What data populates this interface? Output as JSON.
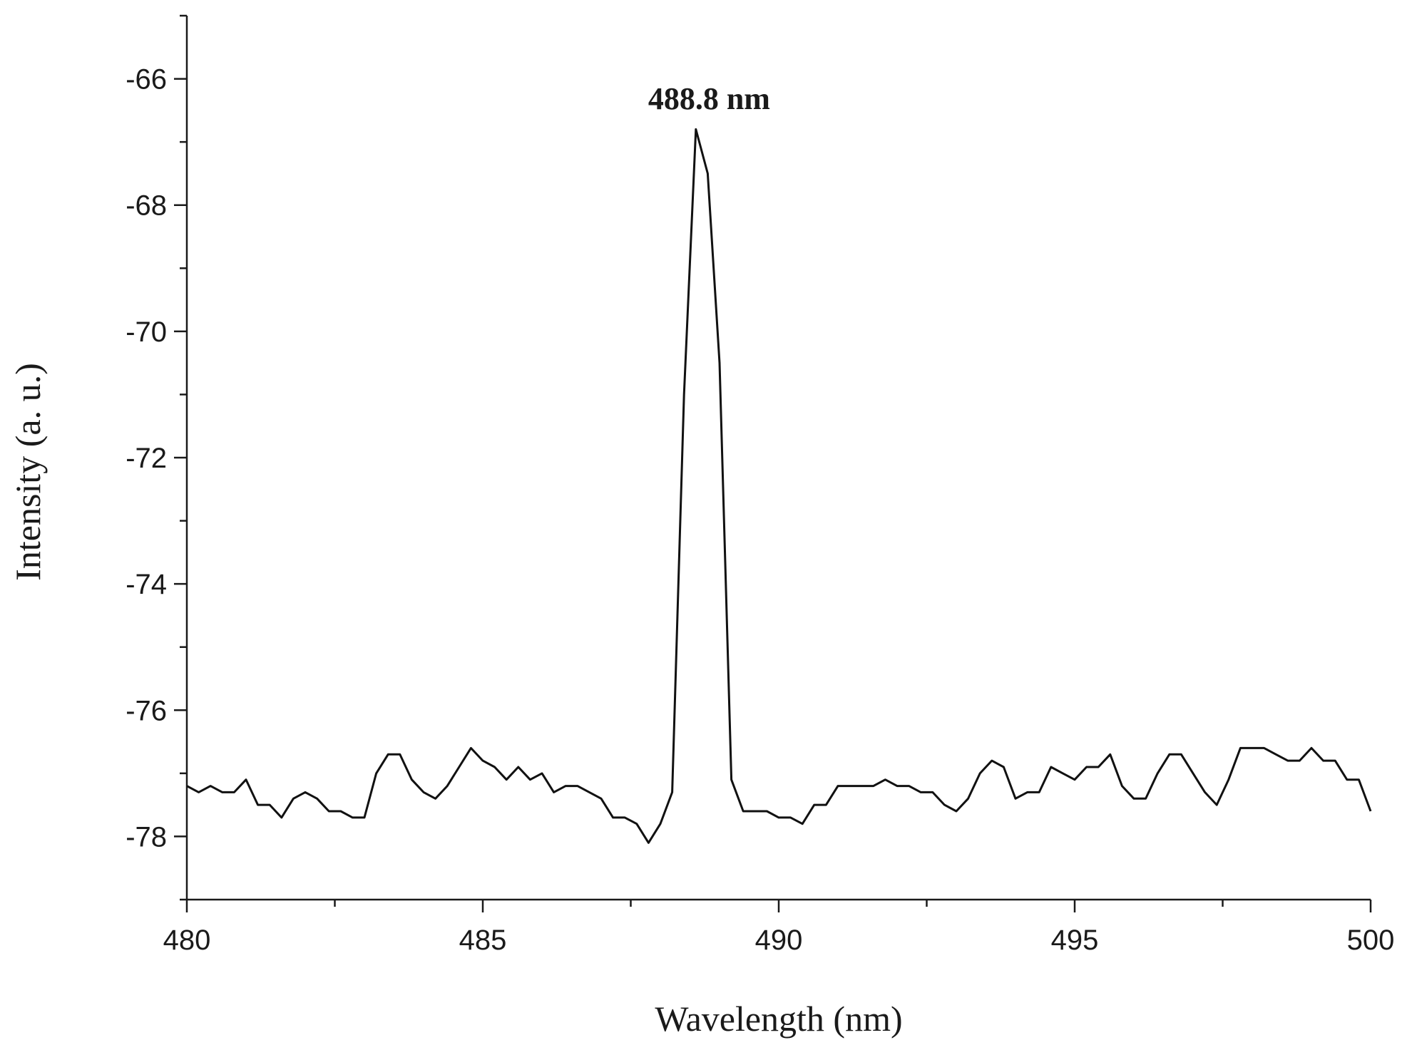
{
  "chart_data": {
    "type": "line",
    "xlabel": "Wavelength (nm)",
    "ylabel": "Intensity (a. u.)",
    "xlim": [
      480,
      500
    ],
    "ylim": [
      -79,
      -65
    ],
    "xticks": [
      480,
      485,
      490,
      495,
      500
    ],
    "xtick_labels": [
      "480",
      "485",
      "490",
      "495",
      "500"
    ],
    "yticks": [
      -66,
      -68,
      -70,
      -72,
      -74,
      -76,
      -78
    ],
    "ytick_labels": [
      "-66",
      "-68",
      "-70",
      "-72",
      "-74",
      "-76",
      "-78"
    ],
    "grid": false,
    "annotations": [
      {
        "text": "488.8 nm",
        "x": 488.8,
        "y": -66.3
      }
    ],
    "series": [
      {
        "color": "#111111",
        "x": [
          480.0,
          480.2,
          480.4,
          480.6,
          480.8,
          481.0,
          481.2,
          481.4,
          481.6,
          481.8,
          482.0,
          482.2,
          482.4,
          482.6,
          482.8,
          483.0,
          483.2,
          483.4,
          483.6,
          483.8,
          484.0,
          484.2,
          484.4,
          484.6,
          484.8,
          485.0,
          485.2,
          485.4,
          485.6,
          485.8,
          486.0,
          486.2,
          486.4,
          486.6,
          486.8,
          487.0,
          487.2,
          487.4,
          487.6,
          487.8,
          488.0,
          488.2,
          488.4,
          488.6,
          488.8,
          489.0,
          489.2,
          489.4,
          489.6,
          489.8,
          490.0,
          490.2,
          490.4,
          490.6,
          490.8,
          491.0,
          491.2,
          491.4,
          491.6,
          491.8,
          492.0,
          492.2,
          492.4,
          492.6,
          492.8,
          493.0,
          493.2,
          493.4,
          493.6,
          493.8,
          494.0,
          494.2,
          494.4,
          494.6,
          494.8,
          495.0,
          495.2,
          495.4,
          495.6,
          495.8,
          496.0,
          496.2,
          496.4,
          496.6,
          496.8,
          497.0,
          497.2,
          497.4,
          497.6,
          497.8,
          498.0,
          498.2,
          498.4,
          498.6,
          498.8,
          499.0,
          499.2,
          499.4,
          499.6,
          499.8,
          500.0
        ],
        "y": [
          -77.2,
          -77.3,
          -77.2,
          -77.3,
          -77.3,
          -77.1,
          -77.5,
          -77.5,
          -77.7,
          -77.4,
          -77.3,
          -77.4,
          -77.6,
          -77.6,
          -77.7,
          -77.7,
          -77.0,
          -76.7,
          -76.7,
          -77.1,
          -77.3,
          -77.4,
          -77.2,
          -76.9,
          -76.6,
          -76.8,
          -76.9,
          -77.1,
          -76.9,
          -77.1,
          -77.0,
          -77.3,
          -77.2,
          -77.2,
          -77.3,
          -77.4,
          -77.7,
          -77.7,
          -77.8,
          -78.1,
          -77.8,
          -77.3,
          -71.0,
          -66.8,
          -67.5,
          -70.5,
          -77.1,
          -77.6,
          -77.6,
          -77.6,
          -77.7,
          -77.7,
          -77.8,
          -77.5,
          -77.5,
          -77.2,
          -77.2,
          -77.2,
          -77.2,
          -77.1,
          -77.2,
          -77.2,
          -77.3,
          -77.3,
          -77.5,
          -77.6,
          -77.4,
          -77.0,
          -76.8,
          -76.9,
          -77.4,
          -77.3,
          -77.3,
          -76.9,
          -77.0,
          -77.1,
          -76.9,
          -76.9,
          -76.7,
          -77.2,
          -77.4,
          -77.4,
          -77.0,
          -76.7,
          -76.7,
          -77.0,
          -77.3,
          -77.5,
          -77.1,
          -76.6,
          -76.6,
          -76.6,
          -76.7,
          -76.8,
          -76.8,
          -76.6,
          -76.8,
          -76.8,
          -77.1,
          -77.1,
          -77.6
        ]
      }
    ]
  }
}
